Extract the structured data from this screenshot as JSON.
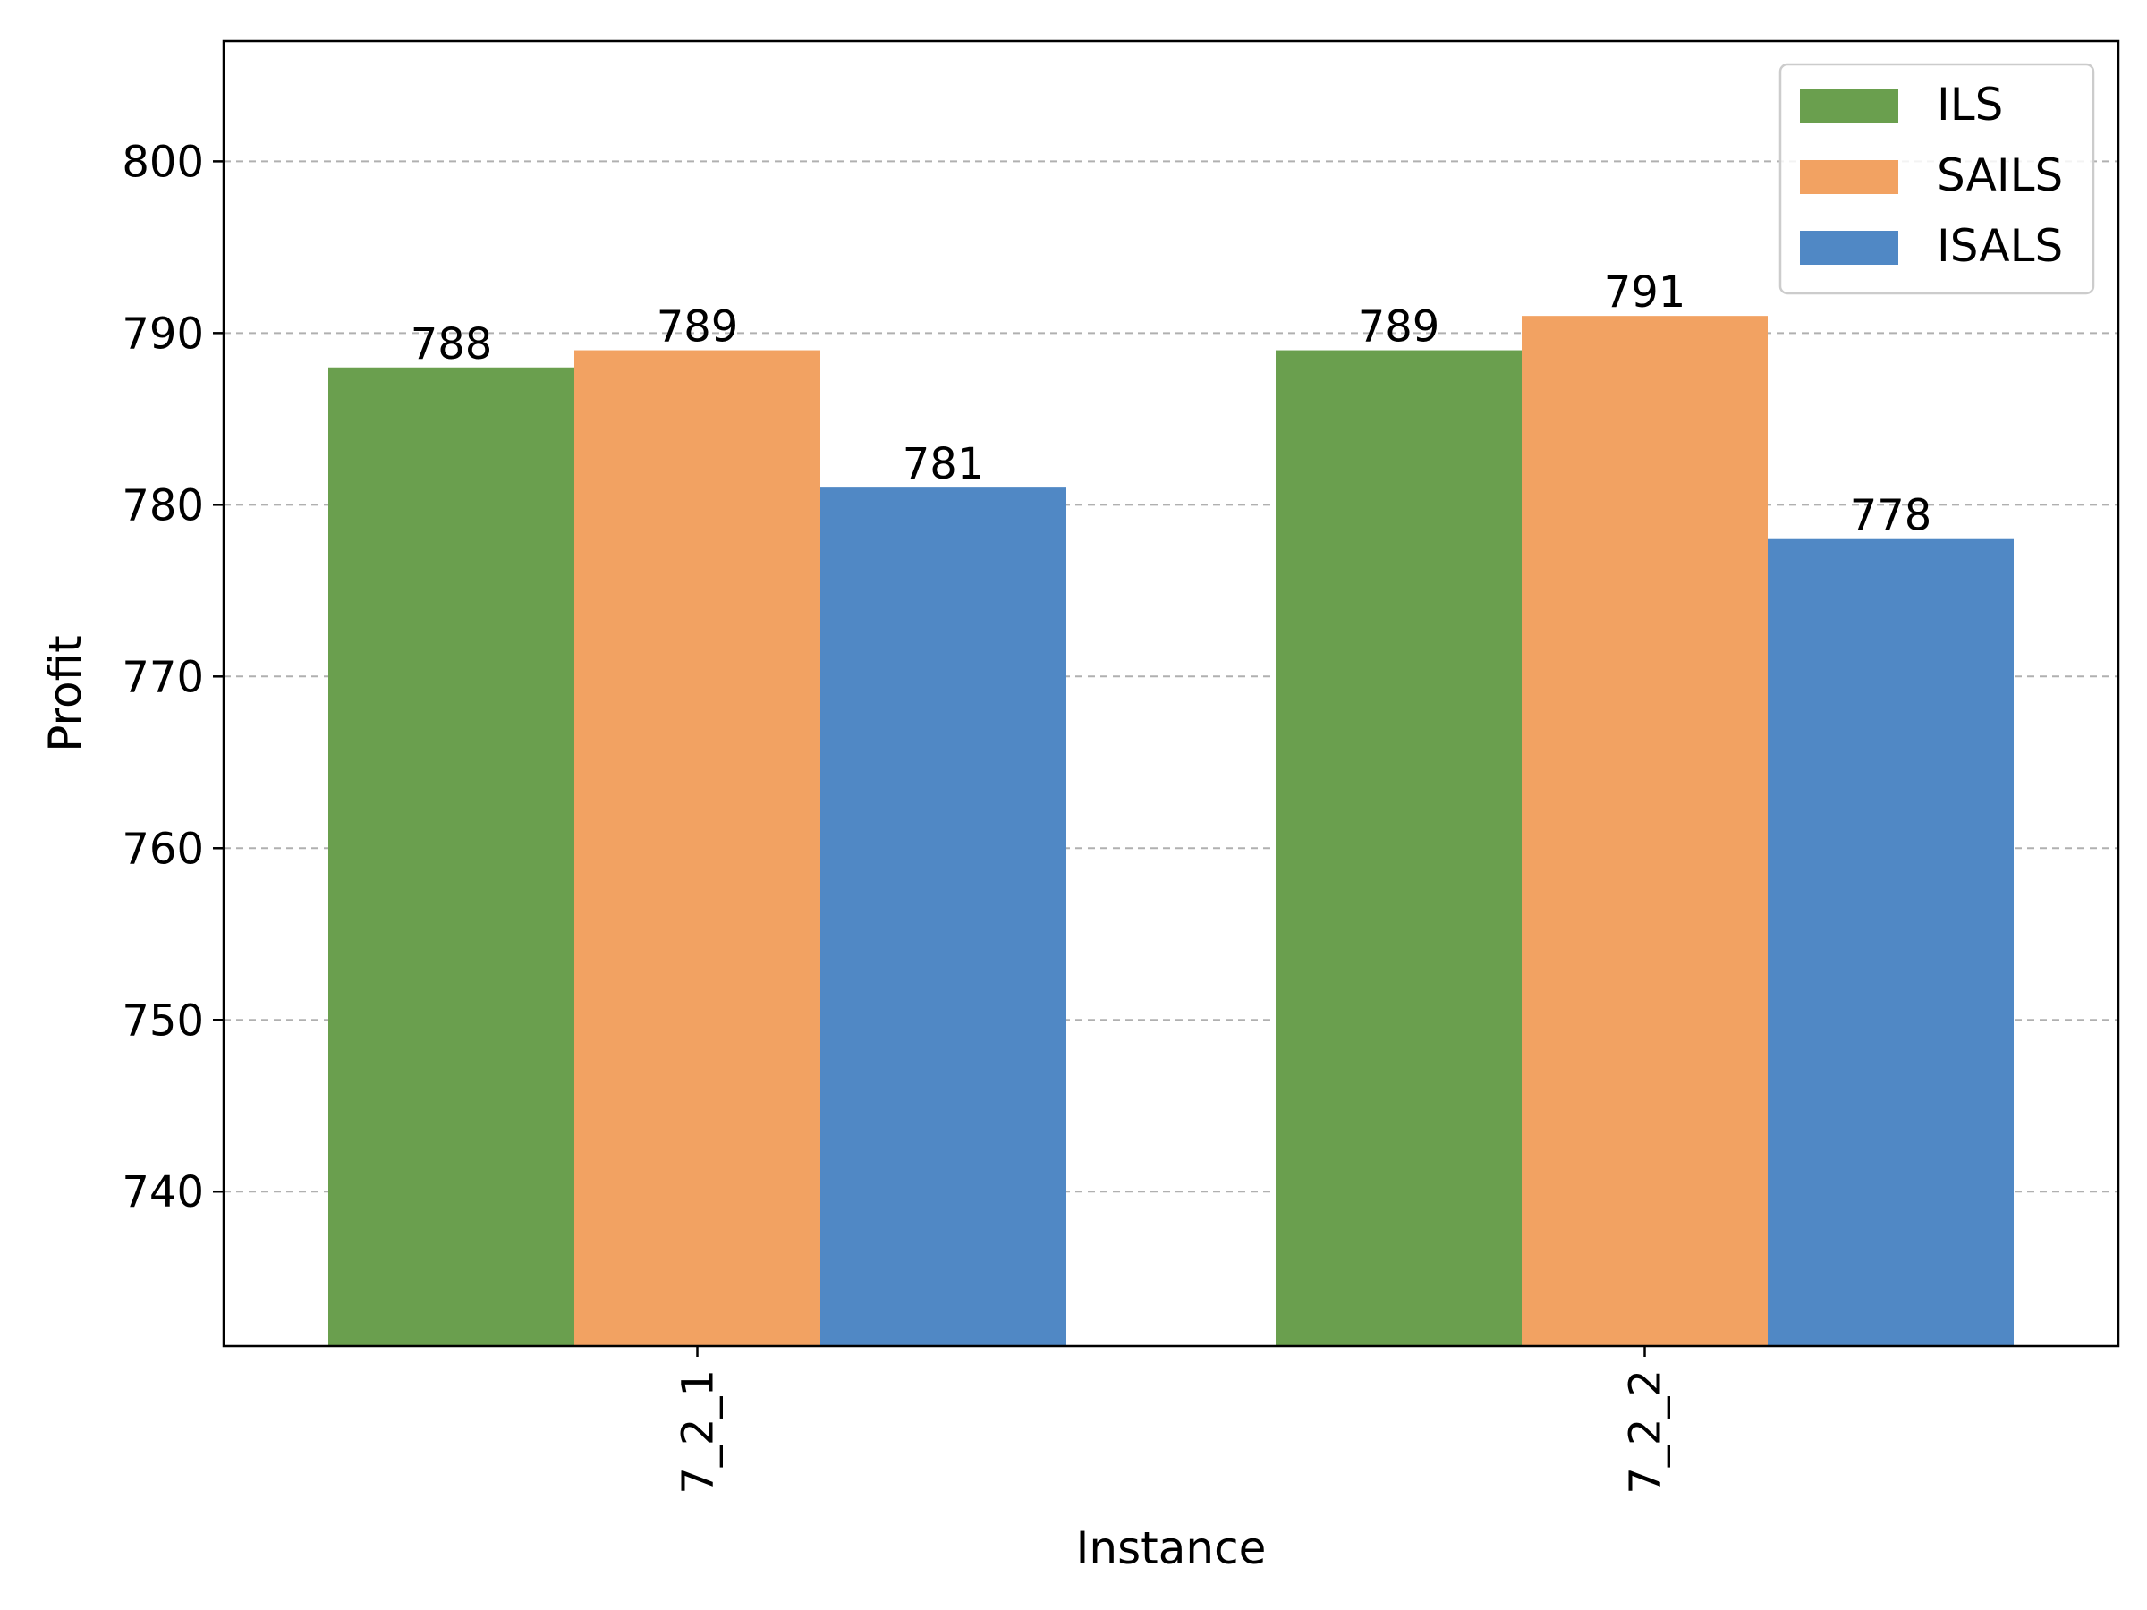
{
  "chart_data": {
    "type": "bar",
    "title": "",
    "xlabel": "Instance",
    "ylabel": "Profit",
    "categories": [
      "7_2_1",
      "7_2_2"
    ],
    "series": [
      {
        "name": "ILS",
        "color": "#6a9f4e",
        "values": [
          788,
          789
        ]
      },
      {
        "name": "SAILS",
        "color": "#f2a262",
        "values": [
          789,
          791
        ]
      },
      {
        "name": "ISALS",
        "color": "#5088c5",
        "values": [
          781,
          778
        ]
      }
    ],
    "ylim": [
      731,
      807
    ],
    "yticks": [
      740,
      750,
      760,
      770,
      780,
      790,
      800
    ],
    "grid": "y-dashed",
    "legend_position": "top-right",
    "data_labels": true
  }
}
